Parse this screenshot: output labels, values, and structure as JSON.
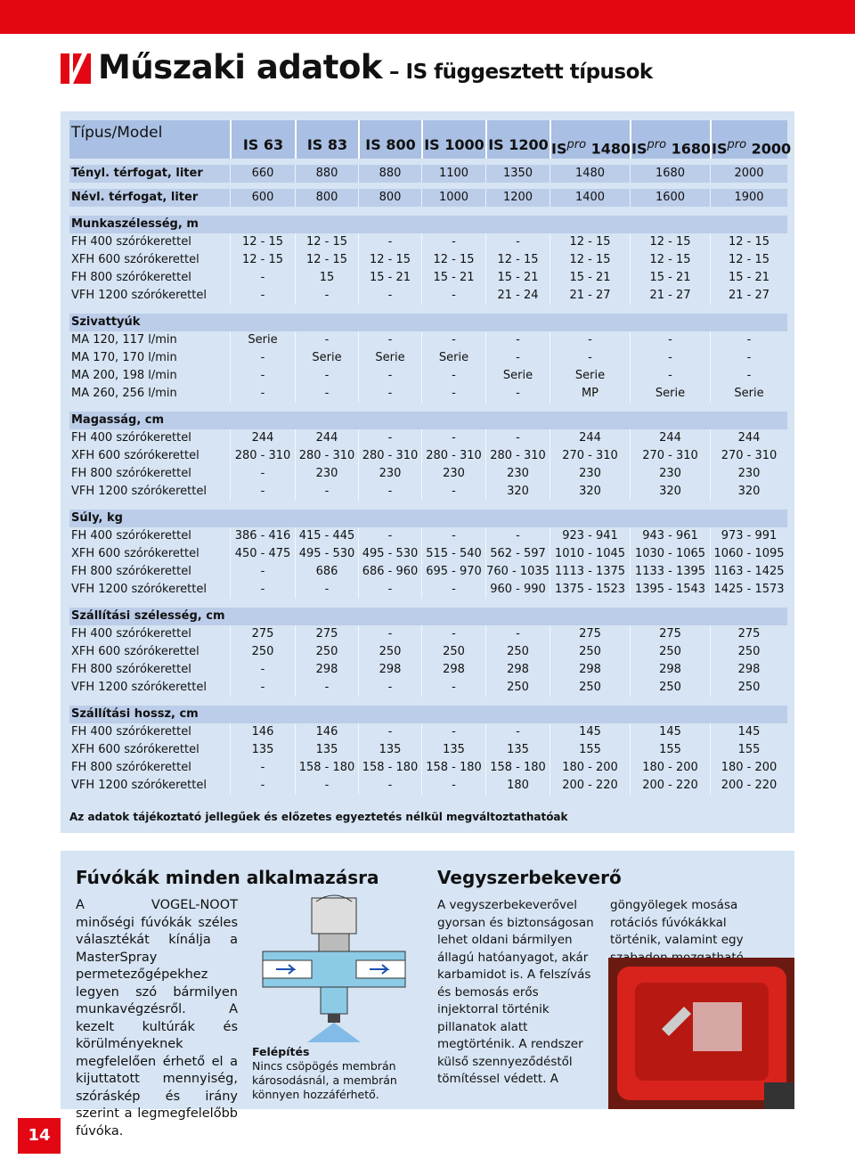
{
  "header": {
    "title": "Műszaki adatok",
    "subtitle": "– IS függesztett típusok"
  },
  "table": {
    "corner": "Típus/Model",
    "models": [
      {
        "text": "IS 63"
      },
      {
        "text": "IS 83"
      },
      {
        "text": "IS 800"
      },
      {
        "text": "IS 1000"
      },
      {
        "text": "IS 1200"
      },
      {
        "text": "IS",
        "sup": "pro",
        "after": " 1480"
      },
      {
        "text": "IS",
        "sup": "pro",
        "after": " 1680"
      },
      {
        "text": "IS",
        "sup": "pro",
        "after": " 2000"
      }
    ],
    "volumes": [
      {
        "label": "Tényl. térfogat, liter",
        "values": [
          "660",
          "880",
          "880",
          "1100",
          "1350",
          "1480",
          "1680",
          "2000"
        ]
      },
      {
        "label": "Névl. térfogat, liter",
        "values": [
          "600",
          "800",
          "800",
          "1000",
          "1200",
          "1400",
          "1600",
          "1900"
        ]
      }
    ],
    "sections": [
      {
        "title": "Munkaszélesség, m",
        "rows": [
          {
            "label": "FH 400 szórókerettel",
            "values": [
              "12 - 15",
              "12 - 15",
              "-",
              "-",
              "-",
              "12 - 15",
              "12 - 15",
              "12 - 15"
            ]
          },
          {
            "label": "XFH 600 szórókerettel",
            "values": [
              "12 - 15",
              "12 - 15",
              "12 - 15",
              "12 - 15",
              "12 - 15",
              "12 - 15",
              "12 - 15",
              "12 - 15"
            ]
          },
          {
            "label": "FH 800 szórókerettel",
            "values": [
              "-",
              "15",
              "15 - 21",
              "15 - 21",
              "15 - 21",
              "15 - 21",
              "15 - 21",
              "15 - 21"
            ]
          },
          {
            "label": "VFH 1200 szórókerettel",
            "values": [
              "-",
              "-",
              "-",
              "-",
              "21 - 24",
              "21 - 27",
              "21 - 27",
              "21 - 27"
            ]
          }
        ]
      },
      {
        "title": "Szivattyúk",
        "rows": [
          {
            "label": "MA 120, 117 l/min",
            "values": [
              "Serie",
              "-",
              "-",
              "-",
              "-",
              "-",
              "-",
              "-"
            ]
          },
          {
            "label": "MA 170, 170 l/min",
            "values": [
              "-",
              "Serie",
              "Serie",
              "Serie",
              "-",
              "-",
              "-",
              "-"
            ]
          },
          {
            "label": "MA 200, 198 l/min",
            "values": [
              "-",
              "-",
              "-",
              "-",
              "Serie",
              "Serie",
              "-",
              "-"
            ]
          },
          {
            "label": "MA 260, 256 l/min",
            "values": [
              "-",
              "-",
              "-",
              "-",
              "-",
              "MP",
              "Serie",
              "Serie"
            ]
          }
        ]
      },
      {
        "title": "Magasság, cm",
        "rows": [
          {
            "label": "FH 400 szórókerettel",
            "values": [
              "244",
              "244",
              "-",
              "-",
              "-",
              "244",
              "244",
              "244"
            ]
          },
          {
            "label": "XFH 600 szórókerettel",
            "values": [
              "280 - 310",
              "280 - 310",
              "280 - 310",
              "280 - 310",
              "280 - 310",
              "270 - 310",
              "270 - 310",
              "270 - 310"
            ]
          },
          {
            "label": "FH 800 szórókerettel",
            "values": [
              "-",
              "230",
              "230",
              "230",
              "230",
              "230",
              "230",
              "230"
            ]
          },
          {
            "label": "VFH 1200 szórókerettel",
            "values": [
              "-",
              "-",
              "-",
              "-",
              "320",
              "320",
              "320",
              "320"
            ]
          }
        ]
      },
      {
        "title": "Súly, kg",
        "rows": [
          {
            "label": "FH 400 szórókerettel",
            "values": [
              "386 - 416",
              "415 - 445",
              "-",
              "-",
              "-",
              "923 - 941",
              "943 - 961",
              "973 - 991"
            ]
          },
          {
            "label": "XFH 600 szórókerettel",
            "values": [
              "450 - 475",
              "495 - 530",
              "495 - 530",
              "515 - 540",
              "562 - 597",
              "1010 - 1045",
              "1030 - 1065",
              "1060 - 1095"
            ]
          },
          {
            "label": "FH 800 szórókerettel",
            "values": [
              "-",
              "686",
              "686 - 960",
              "695 - 970",
              "760 - 1035",
              "1113 - 1375",
              "1133 - 1395",
              "1163 - 1425"
            ]
          },
          {
            "label": "VFH 1200 szórókerettel",
            "values": [
              "-",
              "-",
              "-",
              "-",
              "960 - 990",
              "1375 - 1523",
              "1395 - 1543",
              "1425 - 1573"
            ]
          }
        ]
      },
      {
        "title": "Szállítási szélesség, cm",
        "rows": [
          {
            "label": "FH 400 szórókerettel",
            "values": [
              "275",
              "275",
              "-",
              "-",
              "-",
              "275",
              "275",
              "275"
            ]
          },
          {
            "label": "XFH 600 szórókerettel",
            "values": [
              "250",
              "250",
              "250",
              "250",
              "250",
              "250",
              "250",
              "250"
            ]
          },
          {
            "label": "FH 800 szórókerettel",
            "values": [
              "-",
              "298",
              "298",
              "298",
              "298",
              "298",
              "298",
              "298"
            ]
          },
          {
            "label": "VFH 1200 szórókerettel",
            "values": [
              "-",
              "-",
              "-",
              "-",
              "250",
              "250",
              "250",
              "250"
            ]
          }
        ]
      },
      {
        "title": "Szállítási hossz, cm",
        "rows": [
          {
            "label": "FH 400 szórókerettel",
            "values": [
              "146",
              "146",
              "-",
              "-",
              "-",
              "145",
              "145",
              "145"
            ]
          },
          {
            "label": "XFH 600 szórókerettel",
            "values": [
              "135",
              "135",
              "135",
              "135",
              "135",
              "155",
              "155",
              "155"
            ]
          },
          {
            "label": "FH 800 szórókerettel",
            "values": [
              "-",
              "158 - 180",
              "158 - 180",
              "158 - 180",
              "158 - 180",
              "180 - 200",
              "180 - 200",
              "180 - 200"
            ]
          },
          {
            "label": "VFH 1200 szórókerettel",
            "values": [
              "-",
              "-",
              "-",
              "-",
              "180",
              "200 - 220",
              "200 - 220",
              "200 - 220"
            ]
          }
        ]
      }
    ],
    "footnote": "Az adatok tájékoztató jellegűek és előzetes egyeztetés nélkül megváltoztathatóak"
  },
  "nozzles": {
    "title": "Fúvókák minden alkalmazásra",
    "text": "A VOGEL-NOOT minőségi fúvókák széles választékát kínálja a MasterSpray permetezőgépekhez legyen szó bármilyen munkavégzésről. A kezelt kultúrák és körülményeknek megfelelően érhető el a kijuttatott mennyiség, szóráskép és irány szerint a legmegfelelőbb fúvóka.",
    "caption_title": "Felépítés",
    "caption": "Nincs csöpögés membrán károsodásnál, a membrán könnyen hozzáférhető."
  },
  "mixer": {
    "title": "Vegyszerbekeverő",
    "text": "A vegyszerbekeverővel gyorsan és biztonságosan lehet oldani bármilyen állagú hatóanyagot, akár karbamidot is. A felszívás és bemosás erős injektorral történik pillanatok alatt megtörténik. A rendszer külső szennyeződéstől tömítéssel védett. A göngyölegek mosása rotációs fúvókákkal történik, valamint egy szabadon mozgatható tisztító csappal. Az utóöblítés nemesacél körbefutó vezetékkel fejezhető be."
  },
  "page_number": "14"
}
